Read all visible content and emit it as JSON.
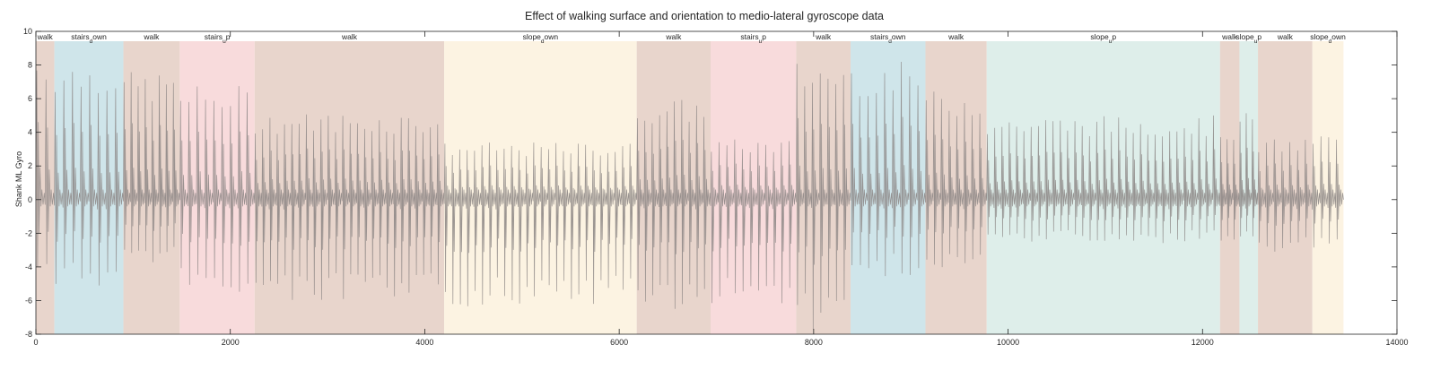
{
  "chart_data": {
    "type": "line",
    "title": "Effect of walking surface and orientation to medio-lateral gyroscope data",
    "xlabel": "",
    "ylabel": "Shank ML Gyro",
    "xlim": [
      0,
      14000
    ],
    "ylim": [
      -8,
      10
    ],
    "xticks": [
      0,
      2000,
      4000,
      6000,
      8000,
      10000,
      12000,
      14000
    ],
    "yticks": [
      -8,
      -6,
      -4,
      -2,
      0,
      2,
      4,
      6,
      8,
      10
    ],
    "grid": false,
    "legend": "none",
    "x_end": 13450,
    "colors": {
      "walk": "#e8d5cc",
      "stairs_down": "#cfe5ea",
      "stairs_up": "#f8dbdc",
      "slope_down": "#fcf3e2",
      "slope_up": "#deeeea",
      "signal": "#8a8482",
      "axis": "#262626"
    },
    "segments": [
      {
        "label": "walk",
        "type": "walk",
        "start": 0,
        "end": 190,
        "amp_pos": 8.8,
        "amp_neg": 4.6,
        "cycles": 2
      },
      {
        "label": "stairs_down",
        "type": "stairs_down",
        "start": 190,
        "end": 900,
        "amp_pos": 8.3,
        "amp_neg": 5.2,
        "cycles": 8
      },
      {
        "label": "walk",
        "type": "walk",
        "start": 900,
        "end": 1480,
        "amp_pos": 7.6,
        "amp_neg": 3.8,
        "cycles": 8
      },
      {
        "label": "stairs_up",
        "type": "stairs_up",
        "start": 1480,
        "end": 2250,
        "amp_pos": 6.8,
        "amp_neg": 5.6,
        "cycles": 9
      },
      {
        "label": "walk",
        "type": "walk",
        "start": 2250,
        "end": 4200,
        "amp_pos": 5.2,
        "amp_neg": 6.2,
        "cycles": 26
      },
      {
        "label": "slope_down",
        "type": "slope_down",
        "start": 4200,
        "end": 6180,
        "amp_pos": 3.4,
        "amp_neg": 6.4,
        "cycles": 26
      },
      {
        "label": "walk",
        "type": "walk",
        "start": 6180,
        "end": 6940,
        "amp_pos": 6.0,
        "amp_neg": 6.6,
        "cycles": 10
      },
      {
        "label": "stairs_up",
        "type": "stairs_up",
        "start": 6940,
        "end": 7820,
        "amp_pos": 3.6,
        "amp_neg": 6.3,
        "cycles": 11
      },
      {
        "label": "walk",
        "type": "walk",
        "start": 7820,
        "end": 8380,
        "amp_pos": 8.3,
        "amp_neg": 7.8,
        "cycles": 7
      },
      {
        "label": "stairs_down",
        "type": "stairs_down",
        "start": 8380,
        "end": 9150,
        "amp_pos": 8.2,
        "amp_neg": 4.6,
        "cycles": 9
      },
      {
        "label": "walk",
        "type": "walk",
        "start": 9150,
        "end": 9780,
        "amp_pos": 6.5,
        "amp_neg": 4.4,
        "cycles": 8
      },
      {
        "label": "slope_up",
        "type": "slope_up",
        "start": 9780,
        "end": 12180,
        "amp_pos": 5.0,
        "amp_neg": 2.6,
        "cycles": 32
      },
      {
        "label": "walk",
        "type": "walk",
        "start": 12180,
        "end": 12380,
        "amp_pos": 4.6,
        "amp_neg": 2.8,
        "cycles": 3
      },
      {
        "label": "slope_up",
        "type": "slope_up",
        "start": 12380,
        "end": 12570,
        "amp_pos": 5.2,
        "amp_neg": 2.4,
        "cycles": 3
      },
      {
        "label": "walk",
        "type": "walk",
        "start": 12570,
        "end": 13130,
        "amp_pos": 3.6,
        "amp_neg": 3.2,
        "cycles": 7
      },
      {
        "label": "slope_down",
        "type": "slope_down",
        "start": 13130,
        "end": 13450,
        "amp_pos": 4.0,
        "amp_neg": 3.0,
        "cycles": 4
      }
    ]
  }
}
